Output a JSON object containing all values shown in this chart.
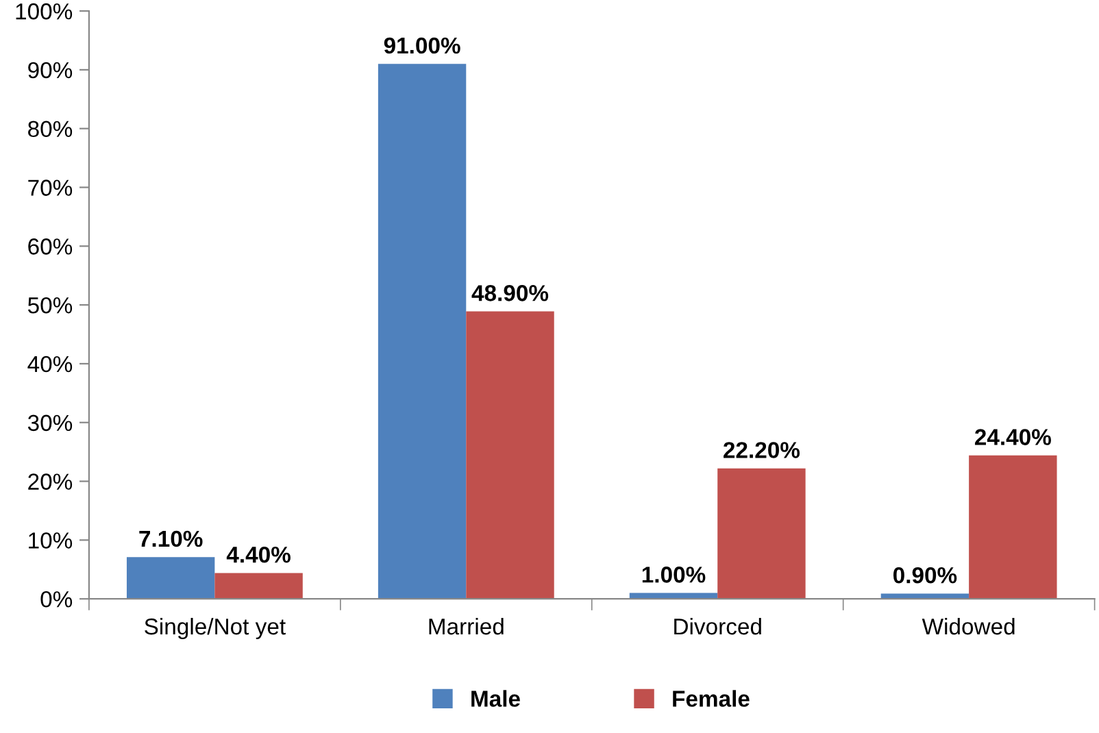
{
  "chart_data": {
    "type": "bar",
    "categories": [
      "Single/Not yet",
      "Married",
      "Divorced",
      "Widowed"
    ],
    "series": [
      {
        "name": "Male",
        "color": "#4f81bd",
        "values": [
          7.1,
          91.0,
          1.0,
          0.9
        ],
        "value_labels": [
          "7.10%",
          "91.00%",
          "1.00%",
          "0.90%"
        ]
      },
      {
        "name": "Female",
        "color": "#c0504d",
        "values": [
          4.4,
          48.9,
          22.2,
          24.4
        ],
        "value_labels": [
          "4.40%",
          "48.90%",
          "22.20%",
          "24.40%"
        ]
      }
    ],
    "ylim": [
      0,
      100
    ],
    "yticks": [
      {
        "value": 0,
        "label": "0%"
      },
      {
        "value": 10,
        "label": "10%"
      },
      {
        "value": 20,
        "label": "20%"
      },
      {
        "value": 30,
        "label": "30%"
      },
      {
        "value": 40,
        "label": "40%"
      },
      {
        "value": 50,
        "label": "50%"
      },
      {
        "value": 60,
        "label": "60%"
      },
      {
        "value": 70,
        "label": "70%"
      },
      {
        "value": 80,
        "label": "80%"
      },
      {
        "value": 90,
        "label": "90%"
      },
      {
        "value": 100,
        "label": "100%"
      }
    ],
    "grid": false,
    "legend": "bottom"
  }
}
